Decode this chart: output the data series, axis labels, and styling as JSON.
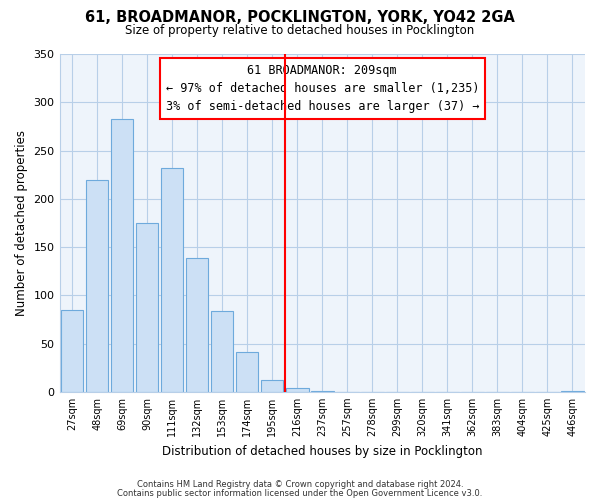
{
  "title": "61, BROADMANOR, POCKLINGTON, YORK, YO42 2GA",
  "subtitle": "Size of property relative to detached houses in Pocklington",
  "xlabel": "Distribution of detached houses by size in Pocklington",
  "ylabel": "Number of detached properties",
  "bar_labels": [
    "27sqm",
    "48sqm",
    "69sqm",
    "90sqm",
    "111sqm",
    "132sqm",
    "153sqm",
    "174sqm",
    "195sqm",
    "216sqm",
    "237sqm",
    "257sqm",
    "278sqm",
    "299sqm",
    "320sqm",
    "341sqm",
    "362sqm",
    "383sqm",
    "404sqm",
    "425sqm",
    "446sqm"
  ],
  "bar_values": [
    85,
    219,
    283,
    175,
    232,
    139,
    84,
    41,
    12,
    4,
    1,
    0,
    0,
    0,
    0,
    0,
    0,
    0,
    0,
    0,
    1
  ],
  "bar_color": "#cce0f5",
  "bar_edge_color": "#6eaadc",
  "vline_x": 8.5,
  "vline_color": "red",
  "annotation_title": "61 BROADMANOR: 209sqm",
  "annotation_line1": "← 97% of detached houses are smaller (1,235)",
  "annotation_line2": "3% of semi-detached houses are larger (37) →",
  "annotation_box_color": "white",
  "annotation_box_edge": "red",
  "ylim": [
    0,
    350
  ],
  "yticks": [
    0,
    50,
    100,
    150,
    200,
    250,
    300,
    350
  ],
  "footnote1": "Contains HM Land Registry data © Crown copyright and database right 2024.",
  "footnote2": "Contains public sector information licensed under the Open Government Licence v3.0.",
  "bg_color": "#eef4fb",
  "plot_bg_color": "#eef4fb",
  "grid_color": "#b8cfe8"
}
